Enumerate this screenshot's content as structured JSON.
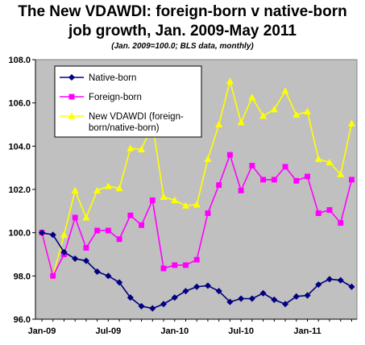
{
  "chart_data": {
    "type": "line",
    "title": "The New VDAWDI: foreign-born v native-born",
    "title_line2": "job growth, Jan. 2009-May 2011",
    "subtitle": "(Jan. 2009=100.0; BLS data, monthly)",
    "x": [
      "Jan-09",
      "Feb-09",
      "Mar-09",
      "Apr-09",
      "May-09",
      "Jun-09",
      "Jul-09",
      "Aug-09",
      "Sep-09",
      "Oct-09",
      "Nov-09",
      "Dec-09",
      "Jan-10",
      "Feb-10",
      "Mar-10",
      "Apr-10",
      "May-10",
      "Jun-10",
      "Jul-10",
      "Aug-10",
      "Sep-10",
      "Oct-10",
      "Nov-10",
      "Dec-10",
      "Jan-11",
      "Feb-11",
      "Mar-11",
      "Apr-11",
      "May-11"
    ],
    "x_tick_labels": [
      "Jan-09",
      "Jul-09",
      "Jan-10",
      "Jul-10",
      "Jan-11"
    ],
    "y_tick_labels": [
      "96.0",
      "98.0",
      "100.0",
      "102.0",
      "104.0",
      "106.0",
      "108.0"
    ],
    "ylim": [
      96,
      108
    ],
    "grid": false,
    "legend_position": "top-left",
    "background": "#c0c0c0",
    "series": [
      {
        "name": "Native-born",
        "color": "#000080",
        "marker": "diamond",
        "values": [
          100.0,
          99.9,
          99.1,
          98.8,
          98.7,
          98.2,
          98.0,
          97.7,
          97.0,
          96.6,
          96.5,
          96.7,
          97.0,
          97.3,
          97.5,
          97.55,
          97.3,
          96.8,
          96.95,
          96.95,
          97.2,
          96.9,
          96.7,
          97.05,
          97.1,
          97.6,
          97.85,
          97.8,
          97.5
        ]
      },
      {
        "name": "Foreign-born",
        "color": "#ff00ff",
        "marker": "square",
        "values": [
          100.0,
          98.0,
          99.0,
          100.7,
          99.3,
          100.1,
          100.1,
          99.7,
          100.8,
          100.35,
          101.5,
          98.35,
          98.5,
          98.5,
          98.75,
          100.9,
          102.2,
          103.6,
          101.95,
          103.1,
          102.45,
          102.45,
          103.05,
          102.4,
          102.6,
          100.9,
          101.05,
          100.45,
          102.45
        ]
      },
      {
        "name": "New VDAWDI (foreign-born/native-born)",
        "legend_lines": [
          "New VDAWDI  (foreign-",
          "born/native-born)"
        ],
        "color": "#ffff00",
        "marker": "triangle",
        "values": [
          100.0,
          98.0,
          99.9,
          101.95,
          100.7,
          101.95,
          102.15,
          102.05,
          103.9,
          103.85,
          105.05,
          101.65,
          101.5,
          101.25,
          101.3,
          103.4,
          105.0,
          107.0,
          105.1,
          106.25,
          105.4,
          105.7,
          106.55,
          105.45,
          105.6,
          103.4,
          103.25,
          102.7,
          105.05
        ]
      }
    ]
  }
}
